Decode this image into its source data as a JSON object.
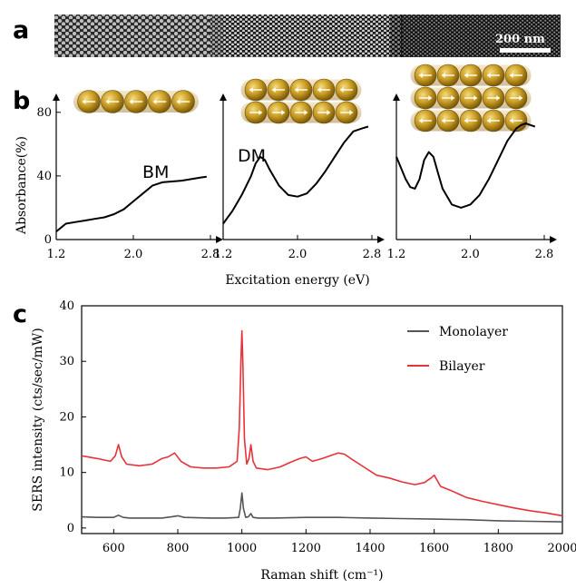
{
  "panels": {
    "a": "a",
    "b": "b",
    "c": "c"
  },
  "micrograph": {
    "scale_label": "200 nm"
  },
  "chart_data": [
    {
      "id": "b1",
      "type": "line",
      "annotation": "BM",
      "layers": 1,
      "xlim": [
        1.2,
        2.8
      ],
      "ylim": [
        0,
        85
      ],
      "x_ticks": [
        "1.2",
        "2.0",
        "2.8"
      ],
      "y_ticks": [
        "0",
        "40",
        "80"
      ],
      "ylabel": "Absorbance(%)",
      "xlabel": "Excitation energy (eV)",
      "series": [
        {
          "color": "#000000",
          "x": [
            1.2,
            1.3,
            1.4,
            1.5,
            1.6,
            1.7,
            1.8,
            1.9,
            2.0,
            2.1,
            2.2,
            2.3,
            2.4,
            2.5,
            2.6,
            2.7,
            2.76
          ],
          "values": [
            5,
            10,
            11,
            12,
            13,
            14,
            16,
            19,
            24,
            29,
            34,
            36,
            36.5,
            37,
            38,
            39,
            39.5
          ]
        }
      ]
    },
    {
      "id": "b2",
      "type": "line",
      "annotation": "DM",
      "layers": 2,
      "xlim": [
        1.2,
        2.8
      ],
      "ylim": [
        0,
        85
      ],
      "x_ticks": [
        "1.2",
        "2.0",
        "2.8"
      ],
      "series": [
        {
          "color": "#000000",
          "x": [
            1.2,
            1.3,
            1.4,
            1.5,
            1.55,
            1.6,
            1.65,
            1.7,
            1.8,
            1.9,
            2.0,
            2.1,
            2.2,
            2.3,
            2.4,
            2.5,
            2.6,
            2.7,
            2.76
          ],
          "values": [
            10,
            18,
            28,
            40,
            48,
            52,
            50,
            44,
            34,
            28,
            27,
            29,
            35,
            43,
            52,
            61,
            68,
            70,
            71
          ]
        }
      ]
    },
    {
      "id": "b3",
      "type": "line",
      "layers": 3,
      "xlim": [
        1.2,
        2.8
      ],
      "ylim": [
        0,
        85
      ],
      "x_ticks": [
        "1.2",
        "2.0",
        "2.8"
      ],
      "series": [
        {
          "color": "#000000",
          "x": [
            1.2,
            1.25,
            1.3,
            1.35,
            1.4,
            1.45,
            1.5,
            1.55,
            1.6,
            1.65,
            1.7,
            1.8,
            1.9,
            2.0,
            2.1,
            2.2,
            2.3,
            2.4,
            2.5,
            2.55,
            2.6,
            2.65,
            2.7
          ],
          "values": [
            52,
            45,
            38,
            33,
            32,
            38,
            50,
            55,
            52,
            42,
            32,
            22,
            20,
            22,
            28,
            38,
            50,
            62,
            70,
            72,
            73,
            72,
            71
          ]
        }
      ]
    },
    {
      "id": "c",
      "type": "line",
      "xlabel": "Raman shift (cm⁻¹)",
      "ylabel": "SERS intensity (cts/sec/mW)",
      "xlim": [
        500,
        2000
      ],
      "ylim": [
        -1,
        40
      ],
      "x_ticks": [
        "600",
        "800",
        "1000",
        "1200",
        "1400",
        "1600",
        "1800",
        "2000"
      ],
      "y_ticks": [
        "0",
        "10",
        "20",
        "30",
        "40"
      ],
      "legend_position": "top-right",
      "series": [
        {
          "name": "Monolayer",
          "color": "#555555",
          "x": [
            500,
            550,
            600,
            615,
            630,
            650,
            700,
            750,
            780,
            800,
            820,
            900,
            950,
            990,
            995,
            1000,
            1005,
            1012,
            1020,
            1028,
            1035,
            1050,
            1100,
            1200,
            1300,
            1400,
            1500,
            1600,
            1700,
            1800,
            1900,
            2000
          ],
          "values": [
            2.0,
            1.9,
            1.9,
            2.3,
            1.9,
            1.8,
            1.8,
            1.8,
            2.0,
            2.2,
            1.9,
            1.8,
            1.8,
            1.9,
            3.5,
            6.3,
            3.5,
            1.9,
            2.0,
            2.6,
            1.9,
            1.8,
            1.8,
            1.9,
            1.9,
            1.8,
            1.7,
            1.6,
            1.5,
            1.3,
            1.2,
            1.1
          ]
        },
        {
          "name": "Bilayer",
          "color": "#e8323a",
          "x": [
            500,
            550,
            590,
            605,
            615,
            625,
            640,
            680,
            720,
            750,
            770,
            790,
            810,
            840,
            880,
            920,
            960,
            985,
            992,
            997,
            1000,
            1003,
            1008,
            1015,
            1022,
            1028,
            1035,
            1045,
            1080,
            1120,
            1150,
            1180,
            1200,
            1220,
            1250,
            1300,
            1320,
            1340,
            1380,
            1420,
            1460,
            1500,
            1540,
            1570,
            1590,
            1600,
            1620,
            1650,
            1700,
            1750,
            1800,
            1850,
            1900,
            1950,
            2000
          ],
          "values": [
            13.0,
            12.5,
            12.0,
            13.0,
            15.0,
            12.8,
            11.5,
            11.2,
            11.5,
            12.5,
            12.8,
            13.5,
            12.0,
            11.0,
            10.8,
            10.8,
            11.0,
            12.0,
            18.0,
            30.0,
            35.5,
            30.0,
            16.0,
            11.5,
            12.5,
            15.0,
            12.0,
            10.8,
            10.5,
            11.0,
            11.8,
            12.5,
            12.8,
            12.0,
            12.5,
            13.5,
            13.3,
            12.5,
            11.0,
            9.5,
            9.0,
            8.3,
            7.8,
            8.2,
            9.0,
            9.5,
            7.5,
            6.8,
            5.5,
            4.8,
            4.2,
            3.6,
            3.1,
            2.7,
            2.2
          ]
        }
      ]
    }
  ]
}
